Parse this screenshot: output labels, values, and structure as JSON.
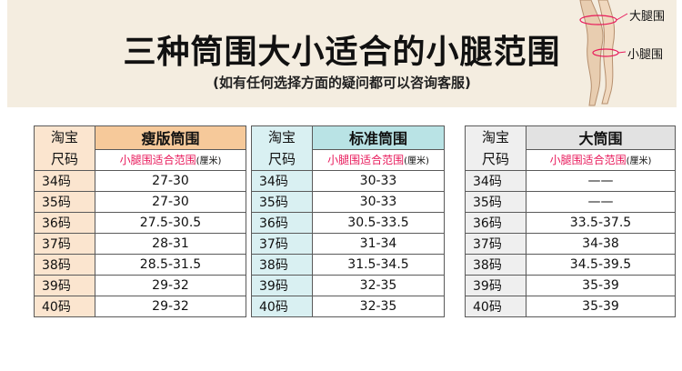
{
  "header": {
    "title": "三种筒围大小适合的小腿范围",
    "subtitle": "(如有任何选择方面的疑问都可以咨询客服)",
    "leg_label_top": "大腿围",
    "leg_label_bottom": "小腿围"
  },
  "tables": [
    {
      "key_line1": "淘宝",
      "key_line2": "尺码",
      "name": "瘦版筒围",
      "range_label": "小腿围适合范围",
      "unit": "(厘米)",
      "header_color": "#f6c99a",
      "rows": [
        {
          "size": "34码",
          "range": "27-30"
        },
        {
          "size": "35码",
          "range": "27-30"
        },
        {
          "size": "36码",
          "range": "27.5-30.5"
        },
        {
          "size": "37码",
          "range": "28-31"
        },
        {
          "size": "38码",
          "range": "28.5-31.5"
        },
        {
          "size": "39码",
          "range": "29-32"
        },
        {
          "size": "40码",
          "range": "29-32"
        }
      ]
    },
    {
      "key_line1": "淘宝",
      "key_line2": "尺码",
      "name": "标准筒围",
      "range_label": "小腿围适合范围",
      "unit": "(厘米)",
      "header_color": "#b9e3e5",
      "rows": [
        {
          "size": "34码",
          "range": "30-33"
        },
        {
          "size": "35码",
          "range": "30-33"
        },
        {
          "size": "36码",
          "range": "30.5-33.5"
        },
        {
          "size": "37码",
          "range": "31-34"
        },
        {
          "size": "38码",
          "range": "31.5-34.5"
        },
        {
          "size": "39码",
          "range": "32-35"
        },
        {
          "size": "40码",
          "range": "32-35"
        }
      ]
    },
    {
      "key_line1": "淘宝",
      "key_line2": "尺码",
      "name": "大筒围",
      "range_label": "小腿围适合范围",
      "unit": "(厘米)",
      "header_color": "#e2e2e2",
      "rows": [
        {
          "size": "34码",
          "range": "——"
        },
        {
          "size": "35码",
          "range": "——"
        },
        {
          "size": "36码",
          "range": "33.5-37.5"
        },
        {
          "size": "37码",
          "range": "34-38"
        },
        {
          "size": "38码",
          "range": "34.5-39.5"
        },
        {
          "size": "39码",
          "range": "35-39"
        },
        {
          "size": "40码",
          "range": "35-39"
        }
      ]
    }
  ]
}
